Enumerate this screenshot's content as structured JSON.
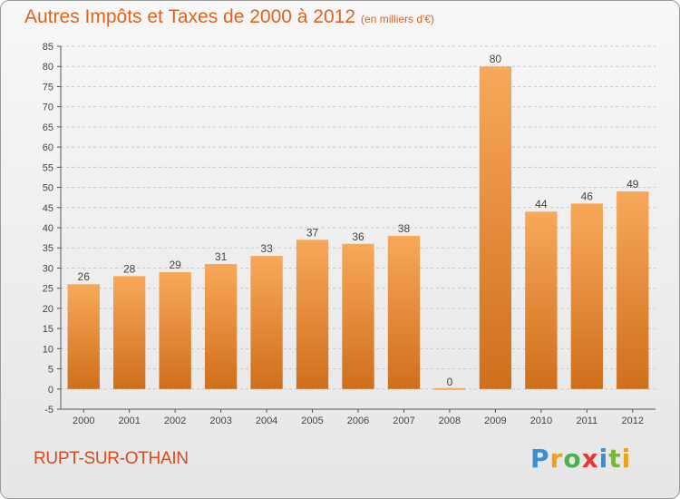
{
  "header": {
    "title": "Autres Impôts et Taxes de 2000 à 2012",
    "subtitle": "(en milliers d'€)"
  },
  "footer": {
    "commune": "RUPT-SUR-OTHAIN",
    "brand_letters": [
      "P",
      "r",
      "o",
      "x",
      "i",
      "t",
      "i"
    ]
  },
  "colors": {
    "title": "#e0631d",
    "commune": "#d94a1e",
    "bar_top": "#f8a85a",
    "bar_bottom": "#cf6f1c",
    "brand": [
      "#3a8fd0",
      "#f0a020",
      "#4caf50",
      "#e53935",
      "#3a8fd0",
      "#7cb342",
      "#f0a020"
    ]
  },
  "chart_data": {
    "type": "bar",
    "categories": [
      "2000",
      "2001",
      "2002",
      "2003",
      "2004",
      "2005",
      "2006",
      "2007",
      "2008",
      "2009",
      "2010",
      "2011",
      "2012"
    ],
    "values": [
      26,
      28,
      29,
      31,
      33,
      37,
      36,
      38,
      0,
      80,
      44,
      46,
      49
    ],
    "data_labels": [
      "26",
      "28",
      "29",
      "31",
      "33",
      "37",
      "36",
      "38",
      "0",
      "80",
      "44",
      "46",
      "49"
    ],
    "ylim": [
      -5,
      85
    ],
    "yticks": [
      -5,
      0,
      5,
      10,
      15,
      20,
      25,
      30,
      35,
      40,
      45,
      50,
      55,
      60,
      65,
      70,
      75,
      80,
      85
    ],
    "grid": "horizontal dashed",
    "legend": "none"
  }
}
